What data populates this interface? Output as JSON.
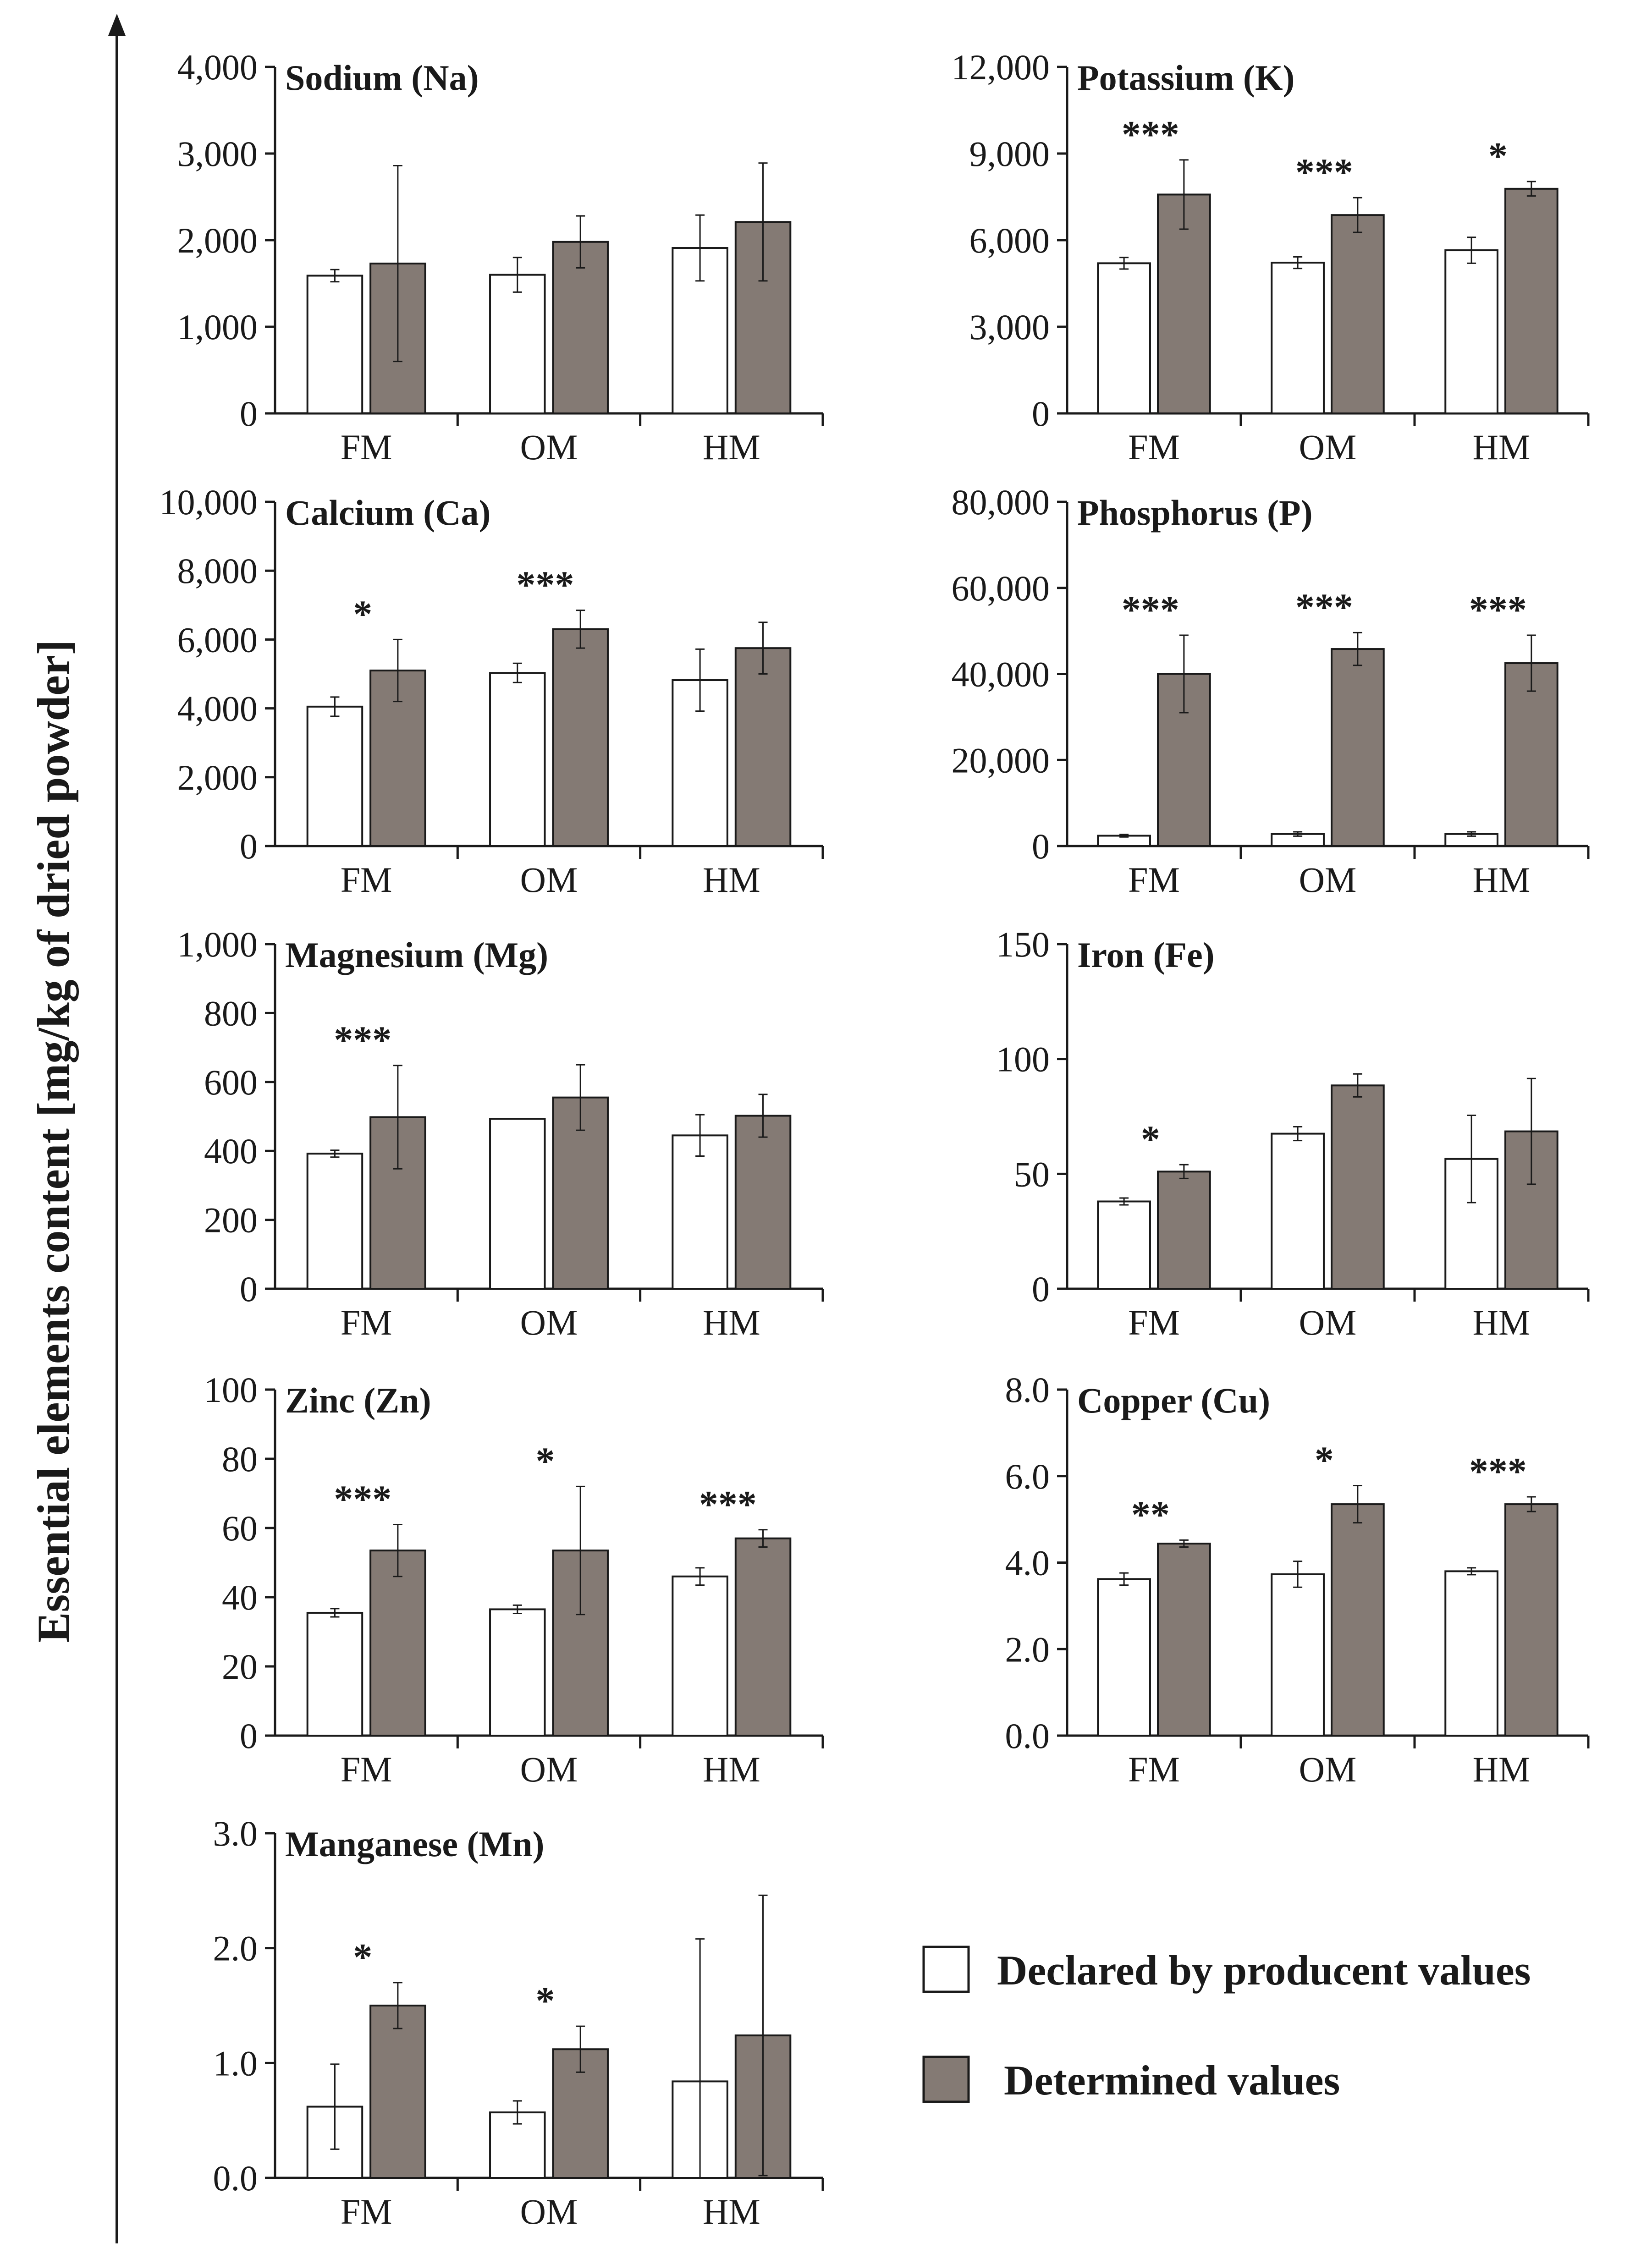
{
  "figure": {
    "ylabel": "Essential elements content [mg/kg of dried powder]",
    "legend": {
      "declared": "Declared by producent values",
      "determined": "Determined values"
    },
    "colors": {
      "declared": "#ffffff",
      "determined": "#847a74",
      "stroke": "#1a1a1a"
    }
  },
  "chart_data": [
    {
      "type": "bar",
      "title": "Sodium (Na)",
      "categories": [
        "FM",
        "OM",
        "HM"
      ],
      "series": [
        {
          "name": "Declared by producent values",
          "values": [
            1590,
            1600,
            1910
          ],
          "errors": [
            70,
            200,
            380
          ]
        },
        {
          "name": "Determined values",
          "values": [
            1730,
            1980,
            2210
          ],
          "errors": [
            1130,
            300,
            680
          ]
        }
      ],
      "significance": [
        "",
        "",
        ""
      ],
      "ylim": [
        0,
        4000
      ],
      "yticks": [
        0,
        1000,
        2000,
        3000,
        4000
      ],
      "yticklabels": [
        "0",
        "1,000",
        "2,000",
        "3,000",
        "4,000"
      ]
    },
    {
      "type": "bar",
      "title": "Potassium (K)",
      "categories": [
        "FM",
        "OM",
        "HM"
      ],
      "series": [
        {
          "name": "Declared by producent values",
          "values": [
            5200,
            5220,
            5650
          ],
          "errors": [
            200,
            200,
            450
          ]
        },
        {
          "name": "Determined values",
          "values": [
            7580,
            6870,
            7780
          ],
          "errors": [
            1200,
            600,
            250
          ]
        }
      ],
      "significance": [
        "***",
        "***",
        "*"
      ],
      "ylim": [
        0,
        12000
      ],
      "yticks": [
        0,
        3000,
        6000,
        9000,
        12000
      ],
      "yticklabels": [
        "0",
        "3,000",
        "6,000",
        "9,000",
        "12,000"
      ]
    },
    {
      "type": "bar",
      "title": "Calcium (Ca)",
      "categories": [
        "FM",
        "OM",
        "HM"
      ],
      "series": [
        {
          "name": "Declared by producent values",
          "values": [
            4050,
            5030,
            4820
          ],
          "errors": [
            280,
            280,
            900
          ]
        },
        {
          "name": "Determined values",
          "values": [
            5100,
            6300,
            5750
          ],
          "errors": [
            900,
            550,
            750
          ]
        }
      ],
      "significance": [
        "*",
        "***",
        ""
      ],
      "ylim": [
        0,
        10000
      ],
      "yticks": [
        0,
        2000,
        4000,
        6000,
        8000,
        10000
      ],
      "yticklabels": [
        "0",
        "2,000",
        "4,000",
        "6,000",
        "8,000",
        "10,000"
      ]
    },
    {
      "type": "bar",
      "title": "Phosphorus (P)",
      "categories": [
        "FM",
        "OM",
        "HM"
      ],
      "series": [
        {
          "name": "Declared by producent values",
          "values": [
            2400,
            2800,
            2800
          ],
          "errors": [
            300,
            500,
            500
          ]
        },
        {
          "name": "Determined values",
          "values": [
            40000,
            45800,
            42500
          ],
          "errors": [
            9000,
            3800,
            6500
          ]
        }
      ],
      "significance": [
        "***",
        "***",
        "***"
      ],
      "ylim": [
        0,
        80000
      ],
      "yticks": [
        0,
        20000,
        40000,
        60000,
        80000
      ],
      "yticklabels": [
        "0",
        "20,000",
        "40,000",
        "60,000",
        "80,000"
      ]
    },
    {
      "type": "bar",
      "title": "Magnesium (Mg)",
      "categories": [
        "FM",
        "OM",
        "HM"
      ],
      "series": [
        {
          "name": "Declared by producent values",
          "values": [
            392,
            493,
            445
          ],
          "errors": [
            10,
            0,
            60
          ]
        },
        {
          "name": "Determined values",
          "values": [
            498,
            555,
            502
          ],
          "errors": [
            150,
            95,
            62
          ]
        }
      ],
      "significance": [
        "***",
        "",
        ""
      ],
      "ylim": [
        0,
        1000
      ],
      "yticks": [
        0,
        200,
        400,
        600,
        800,
        1000
      ],
      "yticklabels": [
        "0",
        "200",
        "400",
        "600",
        "800",
        "1,000"
      ]
    },
    {
      "type": "bar",
      "title": "Iron (Fe)",
      "categories": [
        "FM",
        "OM",
        "HM"
      ],
      "series": [
        {
          "name": "Declared by producent values",
          "values": [
            38,
            67.5,
            56.5
          ],
          "errors": [
            1.5,
            3,
            19
          ]
        },
        {
          "name": "Determined values",
          "values": [
            51,
            88.5,
            68.5
          ],
          "errors": [
            3,
            5,
            23
          ]
        }
      ],
      "significance": [
        "*",
        "",
        ""
      ],
      "ylim": [
        0,
        150
      ],
      "yticks": [
        0,
        50,
        100,
        150
      ],
      "yticklabels": [
        "0",
        "50",
        "100",
        "150"
      ]
    },
    {
      "type": "bar",
      "title": "Zinc (Zn)",
      "categories": [
        "FM",
        "OM",
        "HM"
      ],
      "series": [
        {
          "name": "Declared by producent values",
          "values": [
            35.5,
            36.5,
            46
          ],
          "errors": [
            1.2,
            1.2,
            2.5
          ]
        },
        {
          "name": "Determined values",
          "values": [
            53.5,
            53.5,
            57
          ],
          "errors": [
            7.5,
            18.5,
            2.5
          ]
        }
      ],
      "significance": [
        "***",
        "*",
        "***"
      ],
      "ylim": [
        0,
        100
      ],
      "yticks": [
        0,
        20,
        40,
        60,
        80,
        100
      ],
      "yticklabels": [
        "0",
        "20",
        "40",
        "60",
        "80",
        "100"
      ]
    },
    {
      "type": "bar",
      "title": "Copper (Cu)",
      "categories": [
        "FM",
        "OM",
        "HM"
      ],
      "series": [
        {
          "name": "Declared by producent values",
          "values": [
            3.62,
            3.73,
            3.8
          ],
          "errors": [
            0.14,
            0.3,
            0.08
          ]
        },
        {
          "name": "Determined values",
          "values": [
            4.44,
            5.35,
            5.35
          ],
          "errors": [
            0.08,
            0.43,
            0.17
          ]
        }
      ],
      "significance": [
        "**",
        "*",
        "***"
      ],
      "ylim": [
        0,
        8
      ],
      "yticks": [
        0,
        2,
        4,
        6,
        8
      ],
      "yticklabels": [
        "0.0",
        "2.0",
        "4.0",
        "6.0",
        "8.0"
      ]
    },
    {
      "type": "bar",
      "title": "Manganese (Mn)",
      "categories": [
        "FM",
        "OM",
        "HM"
      ],
      "series": [
        {
          "name": "Declared by producent values",
          "values": [
            0.62,
            0.57,
            0.84
          ],
          "errors": [
            0.37,
            0.1,
            1.24
          ]
        },
        {
          "name": "Determined values",
          "values": [
            1.5,
            1.12,
            1.24
          ],
          "errors": [
            0.2,
            0.2,
            1.22
          ]
        }
      ],
      "significance": [
        "*",
        "*",
        ""
      ],
      "ylim": [
        0,
        3
      ],
      "yticks": [
        0,
        1,
        2,
        3
      ],
      "yticklabels": [
        "0.0",
        "1.0",
        "2.0",
        "3.0"
      ]
    }
  ]
}
